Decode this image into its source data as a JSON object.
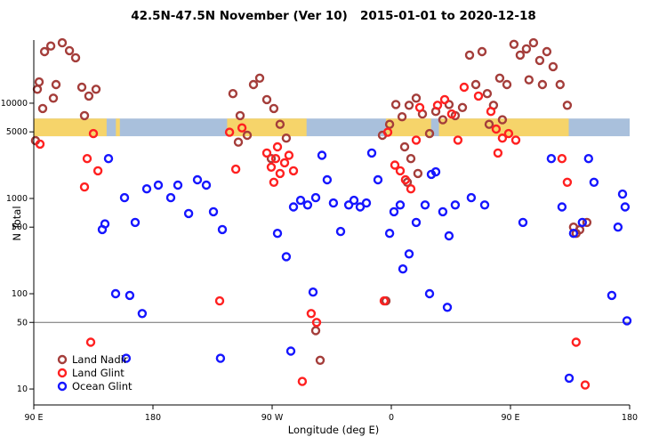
{
  "title": "42.5N-47.5N November (Ver 10)   2015-01-01 to 2020-12-18",
  "chart_data": {
    "type": "scatter",
    "title": "42.5N-47.5N November (Ver 10)   2015-01-01 to 2020-12-18",
    "xlabel": "Longitude (deg E)",
    "ylabel": "N Total",
    "x_axis": {
      "range_deg": [
        0,
        450
      ],
      "ticks_deg": [
        0,
        90,
        180,
        270,
        360,
        450
      ],
      "tick_labels": [
        "90 E",
        "180",
        "90 W",
        "0",
        "90 E",
        "180"
      ]
    },
    "y_axis": {
      "scale": "log",
      "range": [
        6.8,
        46000
      ],
      "ticks": [
        10,
        50,
        100,
        500,
        1000,
        5000,
        10000
      ],
      "tick_labels": [
        "10",
        "50",
        "100",
        "500",
        "1000",
        "5000",
        "10000"
      ]
    },
    "reference_line_y": 50,
    "map_strip": {
      "value_top": 6900,
      "value_bottom": 4500,
      "ocean_color": "#A9C0DC",
      "land_color": "#F6D46A",
      "land_segments_deg": [
        [
          0,
          55
        ],
        [
          62,
          65
        ],
        [
          146,
          206
        ],
        [
          266,
          300
        ],
        [
          306,
          404
        ]
      ]
    },
    "legend": {
      "position": "bottom-left",
      "entries": [
        "Land Nadir",
        "Land Glint",
        "Ocean Glint"
      ]
    },
    "series": [
      {
        "name": "Land Nadir",
        "color": "#A43D3A",
        "points": [
          [
            2.7,
            14000
          ],
          [
            8.1,
            34800
          ],
          [
            12.8,
            39800
          ],
          [
            16.8,
            15700
          ],
          [
            21.5,
            43000
          ],
          [
            26.9,
            35600
          ],
          [
            31.6,
            30000
          ],
          [
            36.3,
            14700
          ],
          [
            41.6,
            11900
          ],
          [
            6.7,
            8800
          ],
          [
            38.3,
            7400
          ],
          [
            47,
            14000
          ],
          [
            14.8,
            11300
          ],
          [
            1.3,
            4050
          ],
          [
            4,
            16700
          ],
          [
            150.4,
            12600
          ],
          [
            155.8,
            7400
          ],
          [
            165.9,
            15700
          ],
          [
            170.6,
            18300
          ],
          [
            176,
            10900
          ],
          [
            181.3,
            8800
          ],
          [
            154.5,
            3900
          ],
          [
            161.2,
            4600
          ],
          [
            186,
            6000
          ],
          [
            190.7,
            4300
          ],
          [
            179.3,
            2620
          ],
          [
            212.9,
            41
          ],
          [
            216.3,
            20
          ],
          [
            263.3,
            4600
          ],
          [
            268.7,
            6000
          ],
          [
            273.4,
            9700
          ],
          [
            278.1,
            7200
          ],
          [
            283.4,
            9500
          ],
          [
            288.8,
            11300
          ],
          [
            293.5,
            7700
          ],
          [
            298.9,
            4800
          ],
          [
            303.6,
            8200
          ],
          [
            308.9,
            6700
          ],
          [
            313.6,
            9700
          ],
          [
            318.3,
            7400
          ],
          [
            323.7,
            9000
          ],
          [
            280.1,
            3480
          ],
          [
            284.8,
            2620
          ],
          [
            290.1,
            1830
          ],
          [
            282.1,
            1480
          ],
          [
            266,
            84
          ],
          [
            329.1,
            32000
          ],
          [
            333.8,
            15700
          ],
          [
            338.5,
            34800
          ],
          [
            342.5,
            12600
          ],
          [
            347.2,
            9500
          ],
          [
            351.9,
            18300
          ],
          [
            357.3,
            15700
          ],
          [
            362.6,
            41500
          ],
          [
            367.3,
            32000
          ],
          [
            372,
            37200
          ],
          [
            377.4,
            43000
          ],
          [
            382.1,
            28100
          ],
          [
            387.5,
            34800
          ],
          [
            392.2,
            24200
          ],
          [
            397.5,
            15700
          ],
          [
            402.9,
            9500
          ],
          [
            384.1,
            15700
          ],
          [
            374,
            17600
          ],
          [
            353.9,
            6700
          ],
          [
            343.9,
            6000
          ],
          [
            407.6,
            500
          ],
          [
            412.3,
            470
          ],
          [
            417.7,
            560
          ],
          [
            409.6,
            430
          ]
        ]
      },
      {
        "name": "Land Glint",
        "color": "#FF2020",
        "points": [
          [
            40.3,
            2620
          ],
          [
            45,
            4800
          ],
          [
            38.3,
            1320
          ],
          [
            48.4,
            1950
          ],
          [
            4.7,
            3720
          ],
          [
            43,
            31
          ],
          [
            140.4,
            84
          ],
          [
            147.8,
            4950
          ],
          [
            152.5,
            2030
          ],
          [
            157.2,
            5500
          ],
          [
            176,
            3000
          ],
          [
            179.3,
            2130
          ],
          [
            182.7,
            2620
          ],
          [
            186,
            1830
          ],
          [
            189.4,
            2370
          ],
          [
            192.7,
            2840
          ],
          [
            196.1,
            1950
          ],
          [
            184,
            3480
          ],
          [
            181.3,
            1480
          ],
          [
            202.8,
            12
          ],
          [
            209.5,
            62
          ],
          [
            213.6,
            50
          ],
          [
            264.6,
            84
          ],
          [
            267.3,
            4950
          ],
          [
            272.7,
            2240
          ],
          [
            276.7,
            1950
          ],
          [
            280.7,
            1570
          ],
          [
            284.8,
            1260
          ],
          [
            288.8,
            4100
          ],
          [
            291.5,
            9000
          ],
          [
            304.9,
            9500
          ],
          [
            310.3,
            10900
          ],
          [
            315.6,
            7700
          ],
          [
            320.3,
            4100
          ],
          [
            325,
            14700
          ],
          [
            335.8,
            11900
          ],
          [
            345.2,
            8200
          ],
          [
            349.2,
            5350
          ],
          [
            353.9,
            4300
          ],
          [
            358.6,
            4800
          ],
          [
            364,
            4100
          ],
          [
            350.5,
            3000
          ],
          [
            398.9,
            2620
          ],
          [
            402.9,
            1480
          ],
          [
            409.6,
            31
          ],
          [
            416.4,
            11
          ]
        ]
      },
      {
        "name": "Ocean Glint",
        "color": "#1515FF",
        "points": [
          [
            56.4,
            2620
          ],
          [
            51.7,
            472
          ],
          [
            68.5,
            1020
          ],
          [
            76.6,
            560
          ],
          [
            85.3,
            1260
          ],
          [
            94,
            1380
          ],
          [
            103.4,
            1020
          ],
          [
            108.8,
            1380
          ],
          [
            116.9,
            695
          ],
          [
            123.6,
            1570
          ],
          [
            130.3,
            1380
          ],
          [
            135.7,
            725
          ],
          [
            142.4,
            472
          ],
          [
            61.8,
            100
          ],
          [
            72.5,
            96
          ],
          [
            81.9,
            62
          ],
          [
            69.8,
            21
          ],
          [
            141,
            21
          ],
          [
            53.7,
            540
          ],
          [
            184,
            430
          ],
          [
            190.7,
            245
          ],
          [
            196.1,
            815
          ],
          [
            201.5,
            955
          ],
          [
            206.8,
            855
          ],
          [
            212.9,
            1020
          ],
          [
            217.6,
            2840
          ],
          [
            221.6,
            1570
          ],
          [
            226.3,
            895
          ],
          [
            231.7,
            450
          ],
          [
            237.8,
            855
          ],
          [
            241.8,
            955
          ],
          [
            246.5,
            815
          ],
          [
            251.2,
            895
          ],
          [
            255.2,
            3000
          ],
          [
            259.9,
            1570
          ],
          [
            194.1,
            25
          ],
          [
            210.9,
            104
          ],
          [
            268.7,
            430
          ],
          [
            272,
            725
          ],
          [
            276.7,
            855
          ],
          [
            278.7,
            182
          ],
          [
            283.4,
            262
          ],
          [
            288.8,
            560
          ],
          [
            295.5,
            855
          ],
          [
            300.2,
            1790
          ],
          [
            303.6,
            1900
          ],
          [
            308.9,
            725
          ],
          [
            313.6,
            405
          ],
          [
            318.3,
            855
          ],
          [
            298.9,
            100
          ],
          [
            312.3,
            72
          ],
          [
            330.4,
            1020
          ],
          [
            340.5,
            855
          ],
          [
            369.4,
            560
          ],
          [
            390.8,
            2620
          ],
          [
            398.9,
            815
          ],
          [
            407.6,
            430
          ],
          [
            414.3,
            560
          ],
          [
            419,
            2620
          ],
          [
            423.1,
            1480
          ],
          [
            436.5,
            96
          ],
          [
            441.2,
            500
          ],
          [
            444.6,
            1110
          ],
          [
            446.6,
            815
          ],
          [
            404.3,
            13
          ],
          [
            448,
            52
          ]
        ]
      }
    ]
  }
}
